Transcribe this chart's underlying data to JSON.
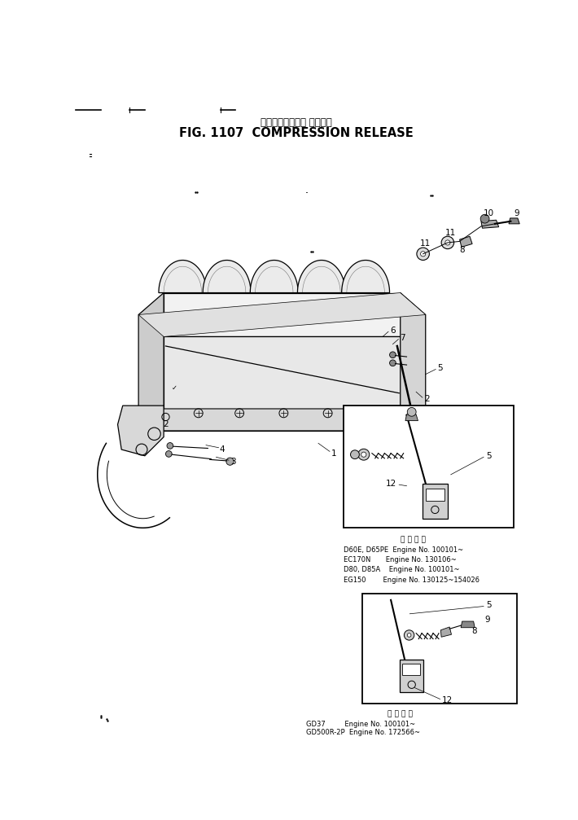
{
  "title_japanese": "コンプレッション リリーズ",
  "title_english": "FIG. 1107  COMPRESSION RELEASE",
  "background_color": "#ffffff",
  "fig_width": 7.1,
  "fig_height": 10.07,
  "dpi": 100,
  "text_color": "#000000",
  "line_color": "#000000",
  "app1_header": "適 用 番 号",
  "app1_lines": [
    "D60E, D65PE  Engine No. 100101~",
    "EC170N       Engine No. 130106~",
    "D80, D85A    Engine No. 100101~",
    "EG150        Engine No. 130125~154026"
  ],
  "app2_header": "適 用 番 号",
  "app2_lines": [
    "GD37         Engine No. 100101~",
    "GD500R-2P  Engine No. 172566~"
  ]
}
